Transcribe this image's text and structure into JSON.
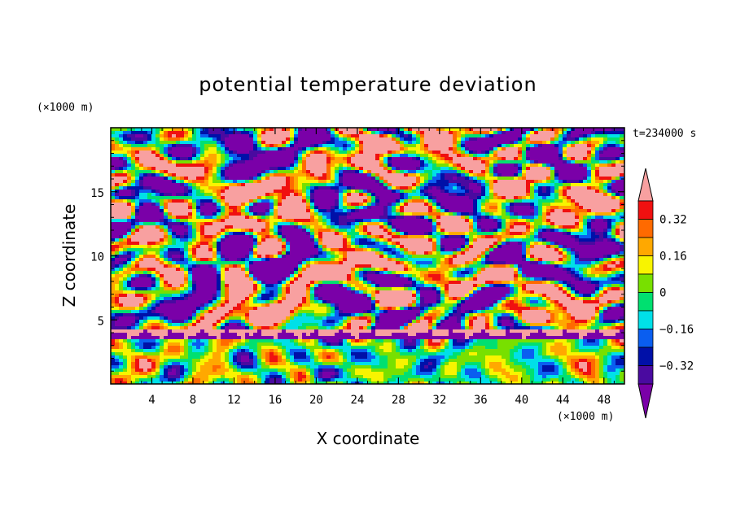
{
  "chart_data": {
    "type": "heatmap",
    "title": "potential temperature deviation",
    "xlabel": "X coordinate",
    "ylabel": "Z coordinate",
    "x_unit": "(×1000 m)",
    "y_unit": "(×1000 m)",
    "time_label": "t=234000 s",
    "xlim": [
      0,
      50
    ],
    "ylim": [
      0,
      20
    ],
    "x_ticks": [
      4,
      8,
      12,
      16,
      20,
      24,
      28,
      32,
      36,
      40,
      44,
      48
    ],
    "y_ticks": [
      5,
      10,
      15
    ],
    "colorbar": {
      "levels": [
        -0.4,
        -0.32,
        -0.24,
        -0.16,
        -0.08,
        0,
        0.08,
        0.16,
        0.24,
        0.32,
        0.4
      ],
      "tick_labels": [
        "0.32",
        "0.16",
        "0",
        "−0.16",
        "−0.32"
      ],
      "tick_values": [
        0.32,
        0.16,
        0,
        -0.16,
        -0.32
      ],
      "colors": [
        "#7a00a8",
        "#4a0aa0",
        "#0010a8",
        "#0a5ef0",
        "#00e0e8",
        "#00e070",
        "#78e000",
        "#f8f400",
        "#ffa800",
        "#ff6a00",
        "#f01010",
        "#f8a0a0"
      ],
      "min_arrow_color": "#7a00a8",
      "max_arrow_color": "#f8a0a0"
    },
    "bands": [
      {
        "z_range": [
          0,
          3.5
        ],
        "description": "lower layer: mostly near-zero to positive values (green/yellow/orange) with negative blue cells"
      },
      {
        "z_range": [
          3.5,
          4.8
        ],
        "description": "thin high-value layer (pink) capped by strong negative (purple)"
      },
      {
        "z_range": [
          4.8,
          20
        ],
        "description": "alternating strongly positive (pink) and strongly negative (purple) horizontal lenses"
      }
    ]
  }
}
